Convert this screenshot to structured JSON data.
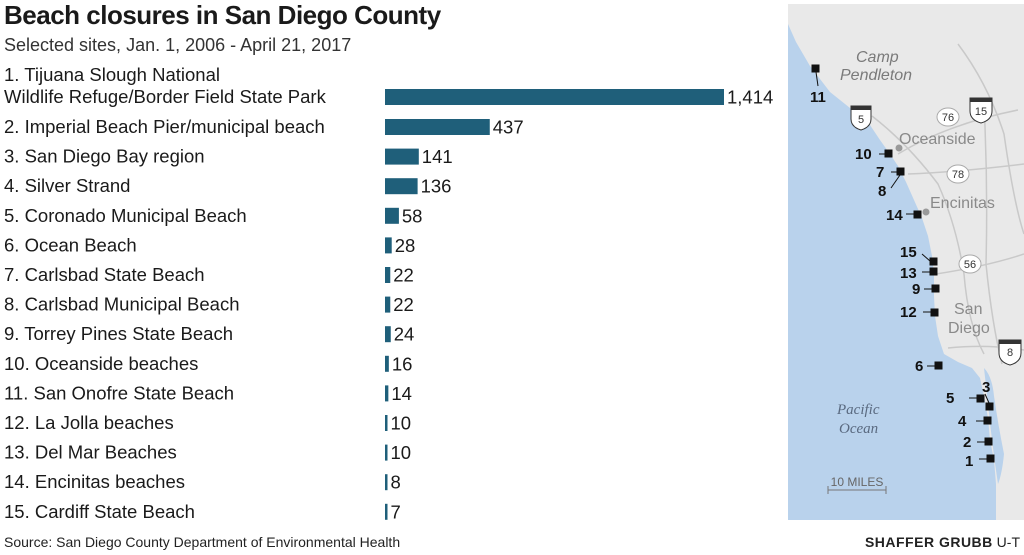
{
  "header": {
    "title": "Beach closures in San Diego County",
    "subtitle": "Selected sites, Jan. 1, 2006 - April 21, 2017"
  },
  "chart_data": {
    "type": "bar",
    "orientation": "horizontal",
    "categories": [
      [
        "1. Tijuana Slough National",
        "Wildlife Refuge/Border Field State Park"
      ],
      [
        "2. Imperial Beach Pier/municipal beach"
      ],
      [
        "3. San Diego Bay region"
      ],
      [
        "4. Silver Strand"
      ],
      [
        "5. Coronado Municipal Beach"
      ],
      [
        "6. Ocean Beach"
      ],
      [
        "7. Carlsbad State Beach"
      ],
      [
        "8. Carlsbad Municipal Beach"
      ],
      [
        "9. Torrey Pines State Beach"
      ],
      [
        "10. Oceanside beaches"
      ],
      [
        "11. San Onofre State Beach"
      ],
      [
        "12. La Jolla beaches"
      ],
      [
        "13. Del Mar Beaches"
      ],
      [
        "14. Encinitas beaches"
      ],
      [
        "15. Cardiff State Beach"
      ]
    ],
    "values": [
      1414,
      437,
      141,
      136,
      58,
      28,
      22,
      22,
      24,
      16,
      14,
      10,
      10,
      8,
      7
    ],
    "value_labels": [
      "1,414",
      "437",
      "141",
      "136",
      "58",
      "28",
      "22",
      "22",
      "24",
      "16",
      "14",
      "10",
      "10",
      "8",
      "7"
    ],
    "xlim": [
      0,
      1414
    ],
    "bar_color": "#1f5f7a",
    "grid": false,
    "legend": "none"
  },
  "map": {
    "places": {
      "camp": "Camp",
      "pendleton": "Pendleton",
      "oceanside": "Oceanside",
      "encinitas": "Encinitas",
      "san": "San",
      "diego": "Diego",
      "pacific": "Pacific",
      "ocean": "Ocean"
    },
    "highways": {
      "i5": "5",
      "h76": "76",
      "i15": "15",
      "h78": "78",
      "h56": "56",
      "i8": "8"
    },
    "sites": [
      "11",
      "10",
      "7",
      "8",
      "14",
      "15",
      "13",
      "9",
      "12",
      "6",
      "3",
      "5",
      "4",
      "2",
      "1"
    ],
    "scale_label": "10 MILES",
    "colors": {
      "land": "#e9e9e9",
      "water": "#b9d2ec",
      "marker": "#111111"
    }
  },
  "footer": {
    "source": "Source: San Diego County Department of Environmental Health",
    "credit_name": "SHAFFER GRUBB",
    "credit_org": "U-T"
  }
}
